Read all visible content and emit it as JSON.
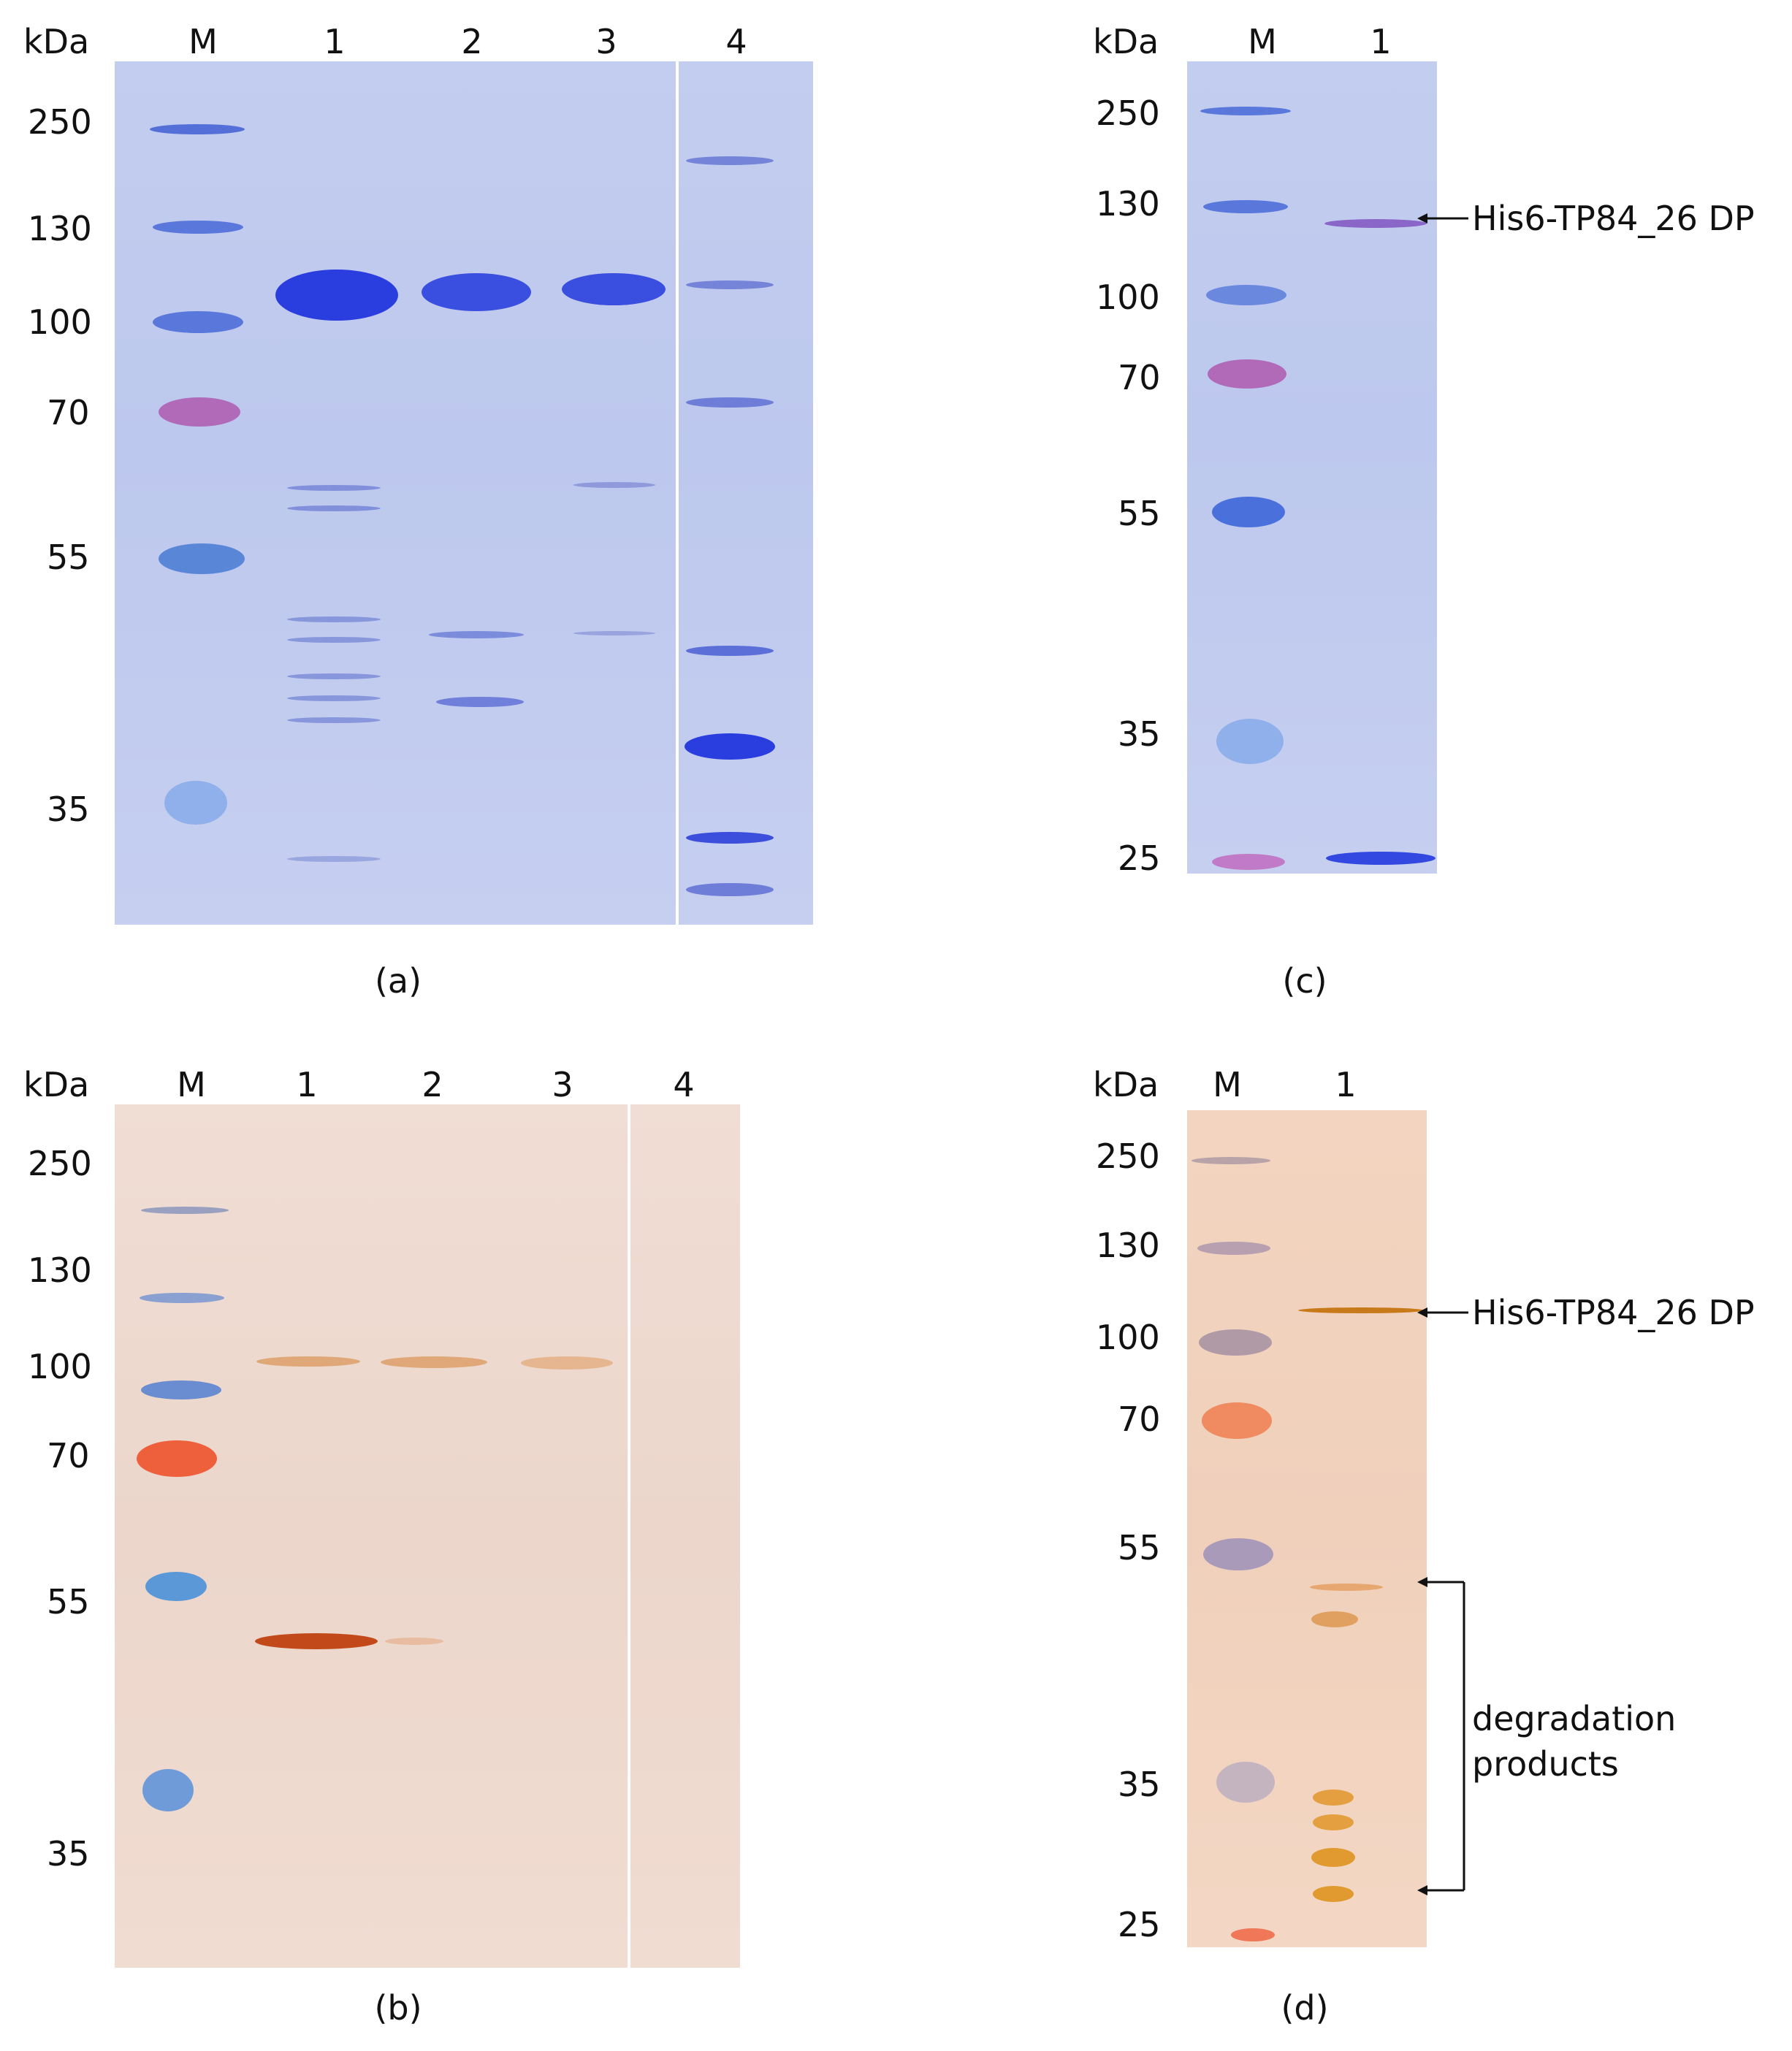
{
  "panel_a": {
    "unit_label": "kDa",
    "marker_label": "M",
    "lane_labels": [
      "1",
      "2",
      "3",
      "4"
    ],
    "ladder": [
      "250",
      "130",
      "100",
      "70",
      "55",
      "35"
    ],
    "caption": "(a)"
  },
  "panel_b": {
    "unit_label": "kDa",
    "marker_label": "M",
    "lane_labels": [
      "1",
      "2",
      "3",
      "4"
    ],
    "ladder": [
      "250",
      "130",
      "100",
      "70",
      "55",
      "35"
    ],
    "caption": "(b)"
  },
  "panel_c": {
    "unit_label": "kDa",
    "marker_label": "M",
    "lane_labels": [
      "1"
    ],
    "ladder": [
      "250",
      "130",
      "100",
      "70",
      "55",
      "35",
      "25"
    ],
    "annotation": "His6-TP84_26 DP",
    "caption": "(c)"
  },
  "panel_d": {
    "unit_label": "kDa",
    "marker_label": "M",
    "lane_labels": [
      "1"
    ],
    "ladder": [
      "250",
      "130",
      "100",
      "70",
      "55",
      "35",
      "25"
    ],
    "annotation": "His6-TP84_26 DP",
    "bracket_label_line1": "degradation",
    "bracket_label_line2": "products",
    "caption": "(d)"
  },
  "colors": {
    "coomassie_background": "#c0caee",
    "coomassie_band": "#3346e0",
    "blot_background": "#eed8ce",
    "blot_band": "#d0803a",
    "marker_pink": "#b06ab8",
    "marker_orange": "#ee5f3c",
    "marker_blue": "#5a86d8"
  }
}
